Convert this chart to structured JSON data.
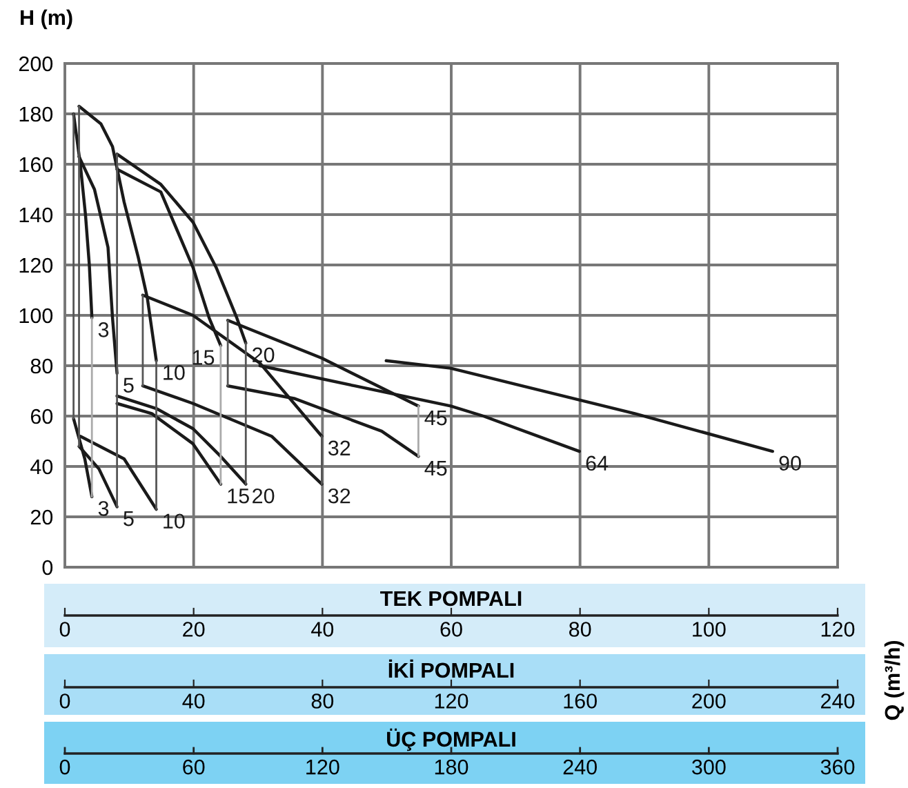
{
  "chart_data": {
    "type": "line",
    "ylabel": "H (m)",
    "xlabel": "TEK POMPALI",
    "x2label": "İKİ POMPALI",
    "xlim": [
      0,
      120
    ],
    "xticks": [
      0,
      20,
      40,
      60,
      80,
      100,
      120
    ],
    "x2lim": [
      0,
      240
    ],
    "x2ticks": [
      0,
      40,
      80,
      120,
      160,
      200,
      240
    ],
    "ylim": [
      0,
      200
    ],
    "yticks": [
      0,
      20,
      40,
      60,
      80,
      100,
      120,
      140,
      160,
      180,
      200
    ],
    "grid": true,
    "series": [
      {
        "name": "3",
        "color": "#1a1a1a",
        "x": [
          1.35,
          2.4,
          3.2,
          3.8,
          4.2
        ],
        "values": [
          180,
          160,
          140,
          120,
          99
        ]
      },
      {
        "name": "5",
        "color": "#1a1a1a",
        "x": [
          2.2,
          4.6,
          6.7,
          7.4,
          8.1
        ],
        "values": [
          163,
          150,
          127,
          99,
          77
        ]
      },
      {
        "name": "10",
        "color": "#1a1a1a",
        "x": [
          2.2,
          5.6,
          7.4,
          9.2,
          11.4,
          12.8,
          14.2
        ],
        "values": [
          183,
          176,
          167,
          145,
          123,
          107,
          82
        ]
      },
      {
        "name": "15",
        "color": "#1a1a1a",
        "x": [
          8.1,
          14.9,
          19.9,
          22.4,
          24.2
        ],
        "values": [
          158,
          149,
          119,
          99,
          88
        ]
      },
      {
        "name": "20",
        "color": "#1a1a1a",
        "x": [
          8.1,
          14.9,
          19.9,
          23.5,
          26.7,
          28.1
        ],
        "values": [
          164,
          152,
          137,
          119,
          99,
          89
        ]
      },
      {
        "name": "32",
        "color": "#1a1a1a",
        "x": [
          12.1,
          19.9,
          30.3,
          39.9
        ],
        "values": [
          108,
          100,
          81,
          52
        ]
      },
      {
        "name": "45",
        "color": "#1a1a1a",
        "x": [
          25.3,
          39.9,
          54.9
        ],
        "values": [
          98,
          83,
          64
        ]
      },
      {
        "name": "64",
        "color": "#1a1a1a",
        "x": [
          30.3,
          45,
          59.9,
          65,
          79.9
        ],
        "values": [
          80,
          72,
          64,
          60,
          46
        ]
      },
      {
        "name": "90",
        "color": "#1a1a1a",
        "x": [
          49.9,
          59.9,
          88.5,
          109.9
        ],
        "values": [
          82,
          79,
          61,
          46
        ]
      },
      {
        "name": "3",
        "color": "#1a1a1a",
        "x": [
          1.35,
          3.1,
          4.2
        ],
        "values": [
          59,
          43,
          28
        ]
      },
      {
        "name": "5",
        "color": "#1a1a1a",
        "x": [
          2.2,
          5.3,
          8.1
        ],
        "values": [
          48,
          39,
          24
        ]
      },
      {
        "name": "10",
        "color": "#1a1a1a",
        "x": [
          2.4,
          9.2,
          14.2
        ],
        "values": [
          52,
          43,
          23
        ]
      },
      {
        "name": "15",
        "color": "#1a1a1a",
        "x": [
          8.1,
          13.5,
          19.9,
          24.2
        ],
        "values": [
          65,
          61,
          49,
          33
        ]
      },
      {
        "name": "20",
        "color": "#1a1a1a",
        "x": [
          8.1,
          14.2,
          19.9,
          24.2,
          28.1
        ],
        "values": [
          68,
          63,
          55,
          44,
          33
        ]
      },
      {
        "name": "32",
        "color": "#1a1a1a",
        "x": [
          12.1,
          19.9,
          32.1,
          39.9
        ],
        "values": [
          72,
          65,
          52,
          33
        ]
      },
      {
        "name": "45",
        "color": "#1a1a1a",
        "x": [
          25.3,
          35.6,
          49.2,
          54.9
        ],
        "values": [
          72,
          67,
          54,
          44
        ]
      },
      {
        "color": "#555555",
        "x": [
          1.35,
          1.35
        ],
        "values": [
          180,
          59
        ]
      },
      {
        "color": "#555555",
        "x": [
          2.2,
          2.2
        ],
        "values": [
          183,
          48
        ]
      },
      {
        "color": "#aaaaaa",
        "x": [
          4.2,
          4.2
        ],
        "values": [
          99,
          28
        ]
      },
      {
        "color": "#555555",
        "x": [
          8.1,
          8.1
        ],
        "values": [
          164,
          24
        ]
      },
      {
        "color": "#555555",
        "x": [
          14.2,
          14.2
        ],
        "values": [
          82,
          23
        ]
      },
      {
        "color": "#aaaaaa",
        "x": [
          24.2,
          24.2
        ],
        "values": [
          88,
          33
        ]
      },
      {
        "color": "#555555",
        "x": [
          28.1,
          28.1
        ],
        "values": [
          89,
          33
        ]
      },
      {
        "color": "#555555",
        "x": [
          12.1,
          12.1
        ],
        "values": [
          108,
          72
        ]
      },
      {
        "color": "#555555",
        "x": [
          25.3,
          25.3
        ],
        "values": [
          98,
          72
        ]
      },
      {
        "color": "#555555",
        "x": [
          39.9,
          39.9
        ],
        "values": [
          52,
          33
        ]
      },
      {
        "color": "#aaaaaa",
        "x": [
          54.9,
          54.9
        ],
        "values": [
          64,
          44
        ]
      }
    ],
    "annotations": [
      "Q (m³/h)",
      "ÜÇ POMPALI",
      "0",
      "60",
      "120",
      "180",
      "240",
      "300",
      "360"
    ]
  }
}
